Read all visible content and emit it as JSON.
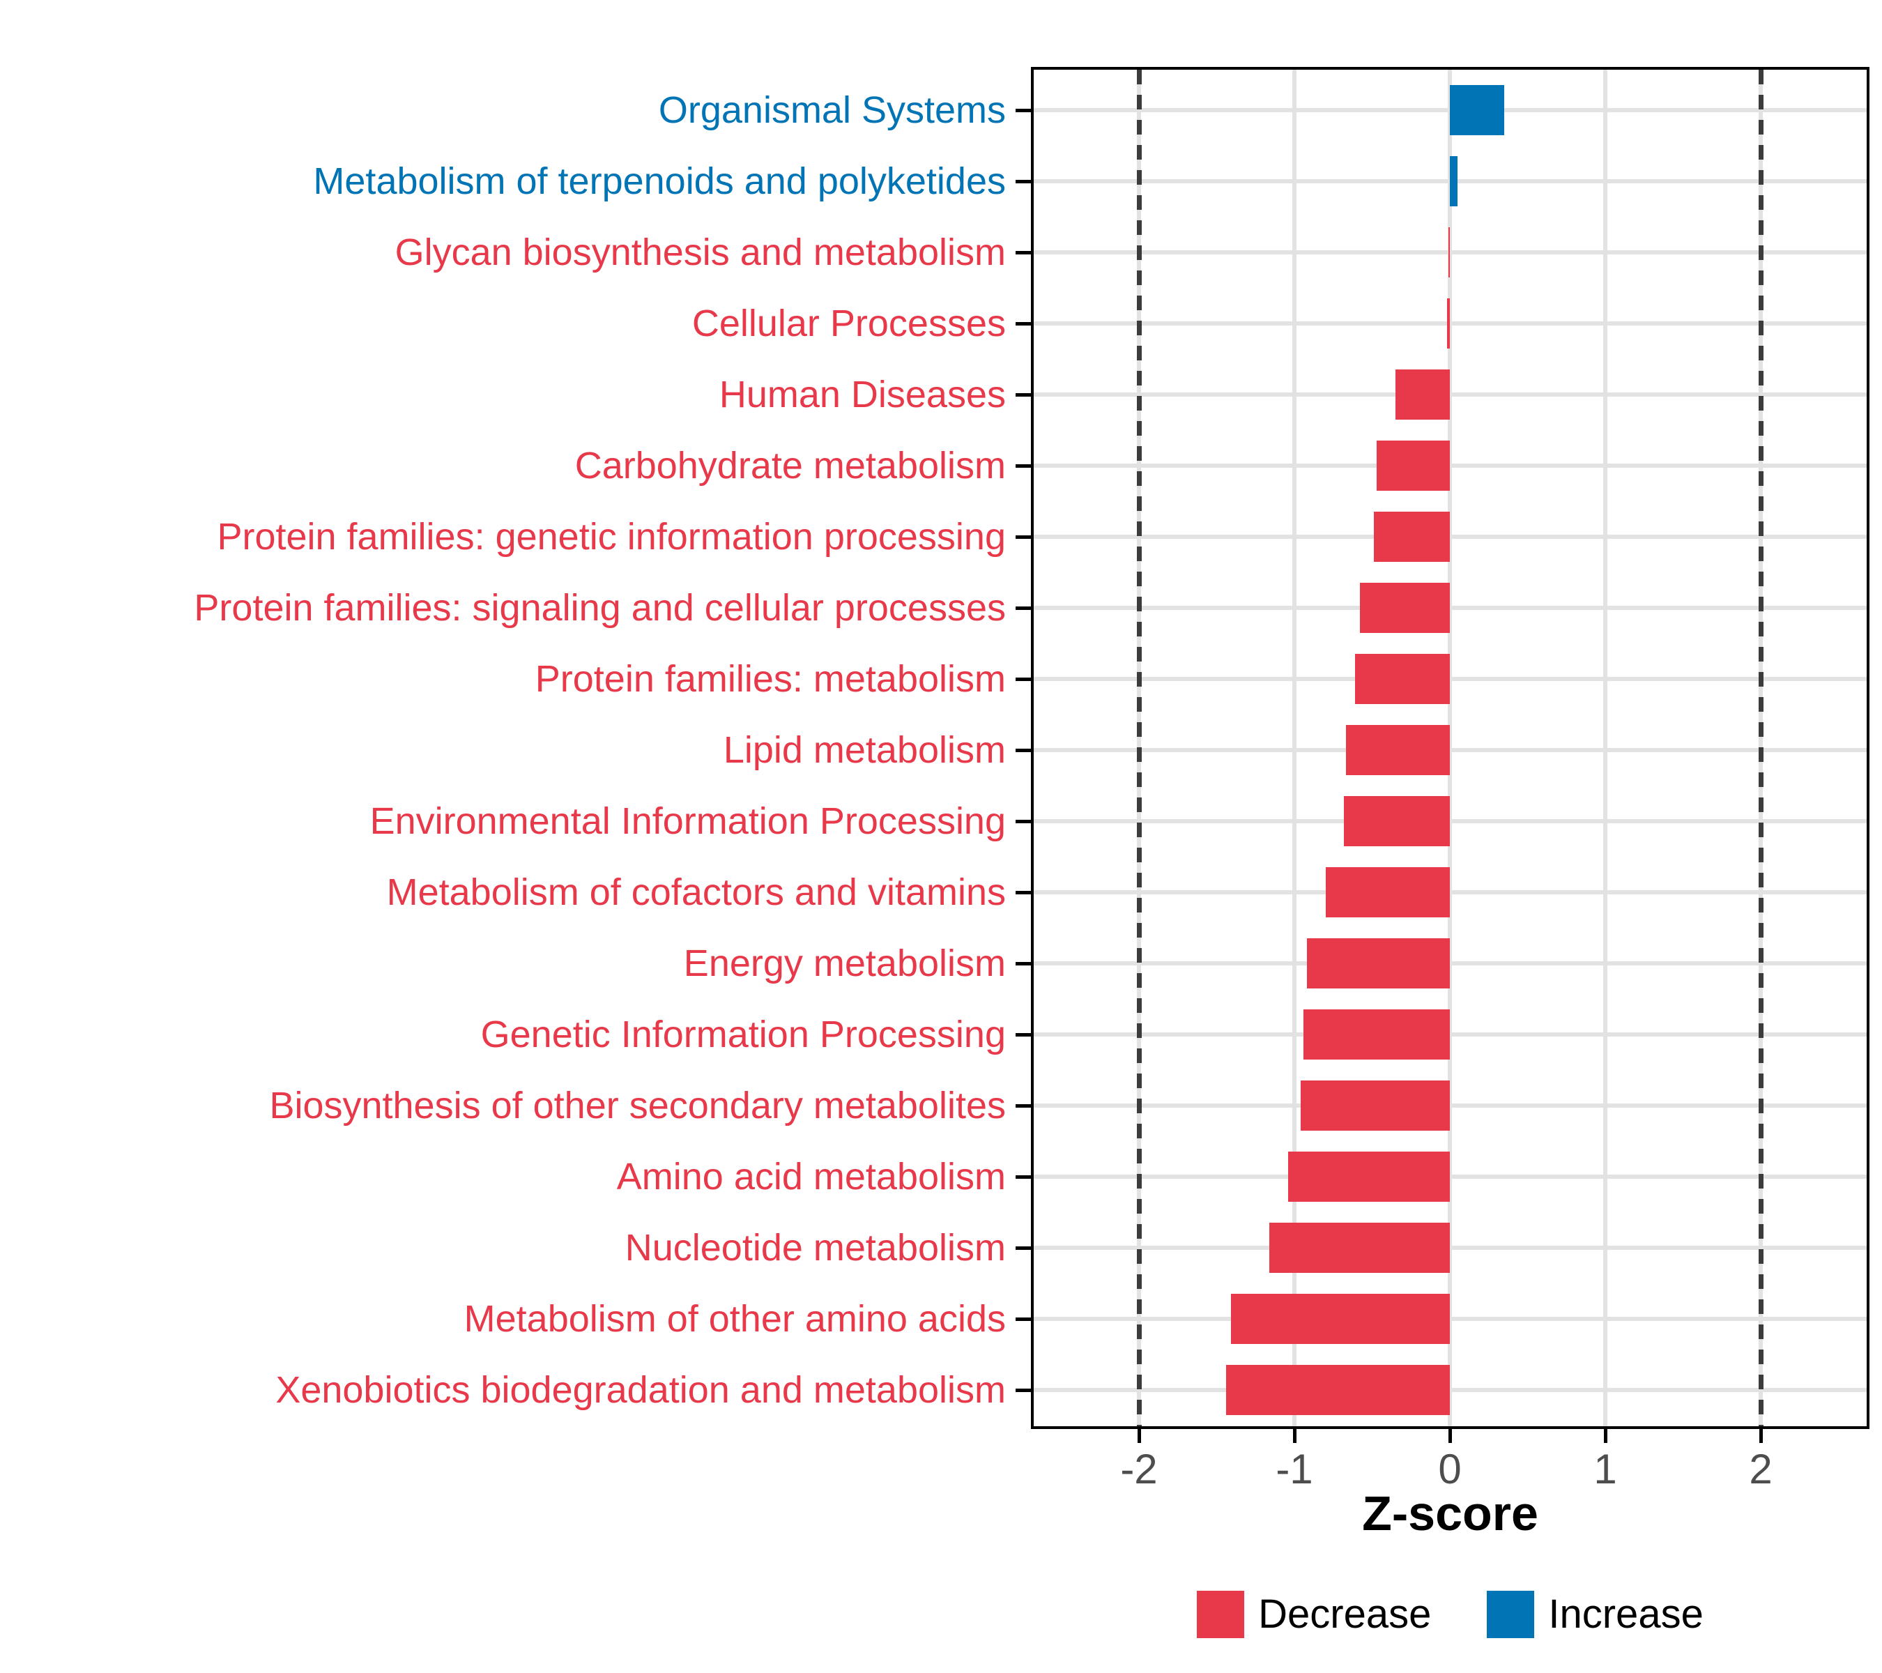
{
  "chart_data": {
    "type": "bar",
    "orientation": "horizontal",
    "xlabel": "Z-score",
    "x_ticks": [
      -2,
      -1,
      0,
      1,
      2
    ],
    "x_tick_labels": [
      "-2",
      "-1",
      "0",
      "1",
      "2"
    ],
    "xlim": [
      -2.68,
      2.68
    ],
    "reference_lines_x": [
      -2,
      2
    ],
    "grid": true,
    "legend_position": "bottom",
    "colors": {
      "decrease": "#e8394a",
      "increase": "#0074b5"
    },
    "categories": [
      "Organismal Systems",
      "Metabolism of terpenoids and polyketides",
      "Glycan biosynthesis and metabolism",
      "Cellular Processes",
      "Human Diseases",
      "Carbohydrate metabolism",
      "Protein families: genetic information processing",
      "Protein families: signaling and cellular processes",
      "Protein families: metabolism",
      "Lipid metabolism",
      "Environmental Information Processing",
      "Metabolism of cofactors and vitamins",
      "Energy metabolism",
      "Genetic Information Processing",
      "Biosynthesis of other secondary metabolites",
      "Amino acid metabolism",
      "Nucleotide metabolism",
      "Metabolism of other amino acids",
      "Xenobiotics biodegradation and metabolism"
    ],
    "values": [
      0.35,
      0.05,
      -0.01,
      -0.02,
      -0.35,
      -0.47,
      -0.49,
      -0.58,
      -0.61,
      -0.67,
      -0.68,
      -0.8,
      -0.92,
      -0.94,
      -0.96,
      -1.04,
      -1.16,
      -1.41,
      -1.44
    ],
    "directions": [
      "increase",
      "increase",
      "decrease",
      "decrease",
      "decrease",
      "decrease",
      "decrease",
      "decrease",
      "decrease",
      "decrease",
      "decrease",
      "decrease",
      "decrease",
      "decrease",
      "decrease",
      "decrease",
      "decrease",
      "decrease",
      "decrease"
    ],
    "legend_entries": [
      {
        "label": "Decrease",
        "direction": "decrease"
      },
      {
        "label": "Increase",
        "direction": "increase"
      }
    ]
  }
}
